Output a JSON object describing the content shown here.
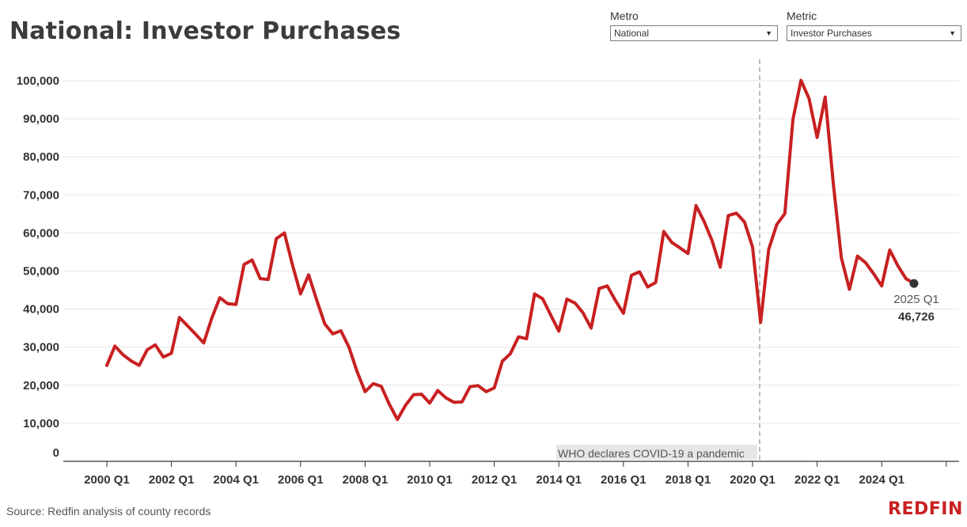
{
  "header": {
    "title": "National: Investor Purchases"
  },
  "filters": {
    "metro": {
      "label": "Metro",
      "value": "National"
    },
    "metric": {
      "label": "Metric",
      "value": "Investor Purchases"
    }
  },
  "footer": {
    "source": "Source: Redfin analysis of county records",
    "logo": "REDFIN"
  },
  "colors": {
    "line": "#c82021",
    "grid": "#e6e6e6",
    "marker": "#333333"
  },
  "chart_data": {
    "type": "line",
    "title": "National: Investor Purchases",
    "xlabel": "",
    "ylabel": "",
    "ylim": [
      0,
      100000
    ],
    "yticks": [
      0,
      10000,
      20000,
      30000,
      40000,
      50000,
      60000,
      70000,
      80000,
      90000,
      100000
    ],
    "ytick_labels": [
      "0",
      "10,000",
      "20,000",
      "30,000",
      "40,000",
      "50,000",
      "60,000",
      "70,000",
      "80,000",
      "90,000",
      "100,000"
    ],
    "xtick_labels": [
      "2000 Q1",
      "2002 Q1",
      "2004 Q1",
      "2006 Q1",
      "2008 Q1",
      "2010 Q1",
      "2012 Q1",
      "2014 Q1",
      "2016 Q1",
      "2018 Q1",
      "2020 Q1",
      "2022 Q1",
      "2024 Q1"
    ],
    "grid": true,
    "series": [
      {
        "x_start": "2000 Q1",
        "values": [
          25200,
          30300,
          28000,
          26400,
          25200,
          29300,
          30600,
          27400,
          28400,
          37800,
          35600,
          33400,
          31100,
          37600,
          43000,
          41400,
          41200,
          51700,
          52900,
          48000,
          47800,
          58500,
          60000,
          51600,
          44000,
          49000,
          42400,
          36100,
          33500,
          34300,
          30000,
          23600,
          18300,
          20400,
          19700,
          15000,
          11000,
          14700,
          17500,
          17600,
          15300,
          18600,
          16700,
          15500,
          15600,
          19600,
          19900,
          18300,
          19300,
          26300,
          28300,
          32700,
          32200,
          44000,
          42700,
          38400,
          34200,
          42600,
          41600,
          39000,
          35000,
          45400,
          46100,
          42300,
          38900,
          48900,
          49800,
          45800,
          47000,
          60400,
          57500,
          56100,
          54600,
          67200,
          63000,
          57900,
          51000,
          64600,
          65200,
          62900,
          56300,
          36500,
          55700,
          62200,
          65100,
          89800,
          100100,
          95300,
          85100,
          95700,
          73100,
          53500,
          45200,
          53900,
          52200,
          49300,
          46100,
          55500,
          51400,
          48000,
          46726
        ]
      }
    ],
    "last_point": {
      "label": "2025 Q1",
      "value_label": "46,726"
    },
    "annotation": {
      "label": "WHO declares COVID-19 a pandemic",
      "x": "2020 Q1"
    }
  }
}
